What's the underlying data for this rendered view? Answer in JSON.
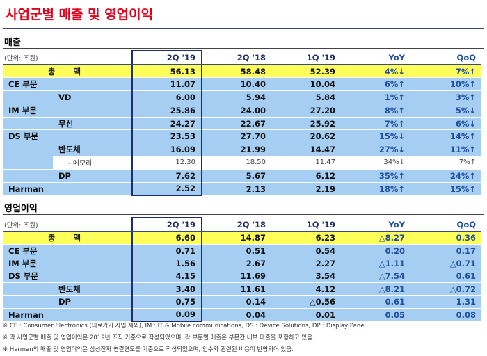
{
  "header": {
    "title": "사업군별 매출 및 영업이익"
  },
  "revenue": {
    "title": "매출",
    "unit": "(단위: 조원)",
    "columns": [
      "2Q '19",
      "2Q '18",
      "1Q '19",
      "YoY",
      "QoQ"
    ],
    "rows": [
      {
        "label": "총 액",
        "values": [
          "56.13",
          "58.48",
          "52.39",
          "4%↓",
          "7%↑"
        ]
      },
      {
        "label": "CE 부문",
        "values": [
          "11.07",
          "10.40",
          "10.04",
          "6%↑",
          "10%↑"
        ],
        "sub": [
          {
            "label": "VD",
            "values": [
              "6.00",
              "5.94",
              "5.84",
              "1%↑",
              "3%↑"
            ]
          }
        ]
      },
      {
        "label": "IM 부문",
        "values": [
          "25.86",
          "24.00",
          "27.20",
          "8%↑",
          "5%↓"
        ],
        "sub": [
          {
            "label": "무선",
            "values": [
              "24.27",
              "22.67",
              "25.92",
              "7%↑",
              "6%↓"
            ]
          }
        ]
      },
      {
        "label": "DS 부문",
        "values": [
          "23.53",
          "27.70",
          "20.62",
          "15%↓",
          "14%↑"
        ],
        "sub": [
          {
            "label": "반도체",
            "values": [
              "16.09",
              "21.99",
              "14.47",
              "27%↓",
              "11%↑"
            ],
            "sub": [
              {
                "label": "- 메모리",
                "values": [
                  "12.30",
                  "18.50",
                  "11.47",
                  "34%↓",
                  "7%↑"
                ]
              }
            ]
          },
          {
            "label": "DP",
            "values": [
              "7.62",
              "5.67",
              "6.12",
              "35%↑",
              "24%↑"
            ]
          }
        ]
      },
      {
        "label": "Harman",
        "values": [
          "2.52",
          "2.13",
          "2.19",
          "18%↑",
          "15%↑"
        ]
      }
    ]
  },
  "profit": {
    "title": "영업이익",
    "unit": "(단위: 조원)",
    "columns": [
      "2Q '19",
      "2Q '18",
      "1Q '19",
      "YoY",
      "QoQ"
    ],
    "rows": [
      {
        "label": "총 액",
        "values": [
          "6.60",
          "14.87",
          "6.23",
          "△8.27",
          "0.36"
        ]
      },
      {
        "label": "CE 부문",
        "values": [
          "0.71",
          "0.51",
          "0.54",
          "0.20",
          "0.17"
        ]
      },
      {
        "label": "IM 부문",
        "values": [
          "1.56",
          "2.67",
          "2.27",
          "△1.11",
          "△0.71"
        ]
      },
      {
        "label": "DS 부문",
        "values": [
          "4.15",
          "11.69",
          "3.54",
          "△7.54",
          "0.61"
        ],
        "sub": [
          {
            "label": "반도체",
            "values": [
              "3.40",
              "11.61",
              "4.12",
              "△8.21",
              "△0.72"
            ]
          },
          {
            "label": "DP",
            "values": [
              "0.75",
              "0.14",
              "△0.56",
              "0.61",
              "1.31"
            ]
          }
        ]
      },
      {
        "label": "Harman",
        "values": [
          "0.09",
          "0.04",
          "0.01",
          "0.05",
          "0.08"
        ]
      }
    ]
  },
  "notes": [
    "※ CE : Consumer Electronics (의료기기 사업 제외), IM : IT & Mobile communications, DS : Device Solutions, DP : Display Panel",
    "※ 각 사업군별 매출 및 영업이익은 2019년 조직 기준으로 작성되었으며, 각 부문별 매출은 부문간 내부 매출을 포함하고 있음.",
    "※ Harman의 매출 및 영업이익은 삼성전자 연결연도를 기준으로 작성되었으며, 인수와 관련된 비용이 반영되어 있음."
  ]
}
